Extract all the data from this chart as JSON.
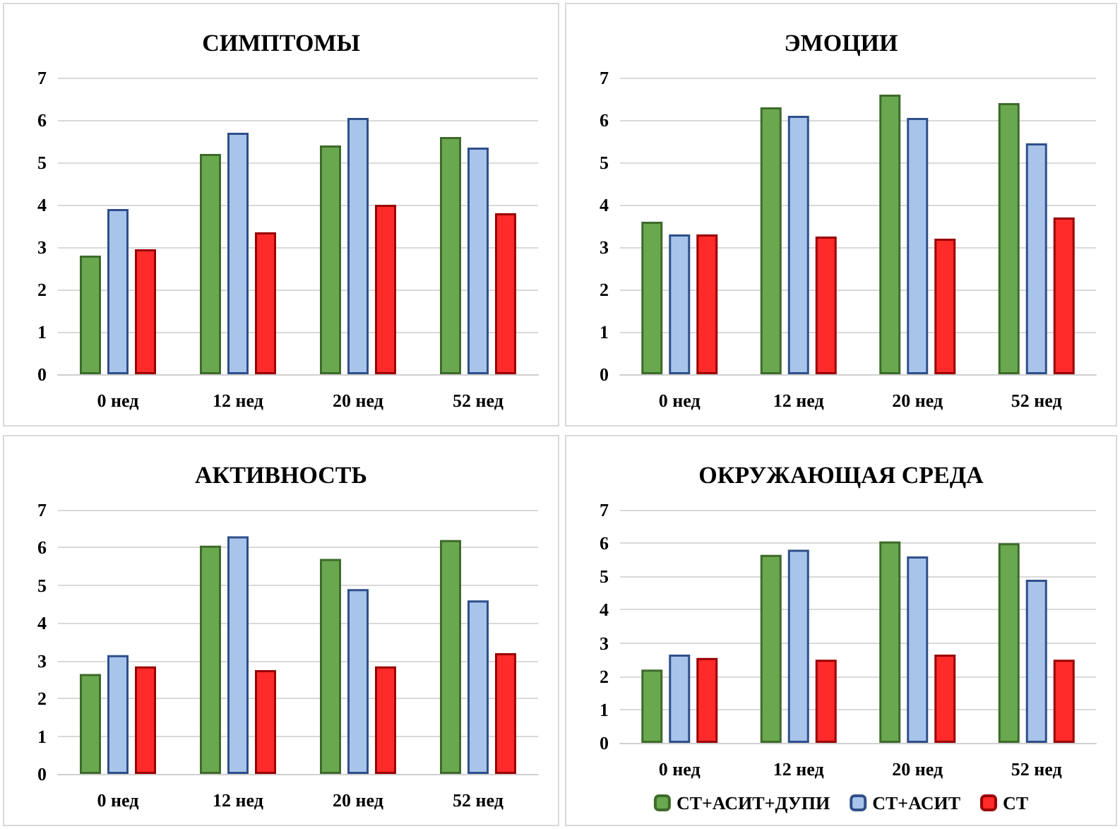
{
  "chart_data": [
    {
      "type": "bar",
      "title": "СИМПТОМЫ",
      "categories": [
        "0 нед",
        "12 нед",
        "20 нед",
        "52 нед"
      ],
      "ylim": [
        0,
        7
      ],
      "yticks": [
        0,
        1,
        2,
        3,
        4,
        5,
        6,
        7
      ],
      "grid": "y",
      "legend": false,
      "series": [
        {
          "color": "#6aa84f",
          "values": [
            2.8,
            5.2,
            5.4,
            5.6
          ]
        },
        {
          "color": "#a9c4eb",
          "values": [
            3.9,
            5.7,
            6.05,
            5.35
          ]
        },
        {
          "color": "#ff2a2a",
          "values": [
            2.95,
            3.35,
            4.0,
            3.8
          ]
        }
      ]
    },
    {
      "type": "bar",
      "title": "ЭМОЦИИ",
      "categories": [
        "0 нед",
        "12 нед",
        "20 нед",
        "52 нед"
      ],
      "ylim": [
        0,
        7
      ],
      "yticks": [
        0,
        1,
        2,
        3,
        4,
        5,
        6,
        7
      ],
      "grid": "y",
      "legend": false,
      "series": [
        {
          "color": "#6aa84f",
          "values": [
            3.6,
            6.3,
            6.6,
            6.4
          ]
        },
        {
          "color": "#a9c4eb",
          "values": [
            3.3,
            6.1,
            6.05,
            5.45
          ]
        },
        {
          "color": "#ff2a2a",
          "values": [
            3.3,
            3.25,
            3.2,
            3.7
          ]
        }
      ]
    },
    {
      "type": "bar",
      "title": "АКТИВНОСТЬ",
      "categories": [
        "0 нед",
        "12 нед",
        "20 нед",
        "52 нед"
      ],
      "ylim": [
        0,
        7
      ],
      "yticks": [
        0,
        1,
        2,
        3,
        4,
        5,
        6,
        7
      ],
      "grid": "y",
      "legend": false,
      "series": [
        {
          "color": "#6aa84f",
          "values": [
            2.65,
            6.05,
            5.7,
            6.2
          ]
        },
        {
          "color": "#a9c4eb",
          "values": [
            3.15,
            6.3,
            4.9,
            4.6
          ]
        },
        {
          "color": "#ff2a2a",
          "values": [
            2.85,
            2.75,
            2.85,
            3.2
          ]
        }
      ]
    },
    {
      "type": "bar",
      "title": "ОКРУЖАЮЩАЯ СРЕДА",
      "categories": [
        "0 нед",
        "12 нед",
        "20 нед",
        "52 нед"
      ],
      "ylim": [
        0,
        7
      ],
      "yticks": [
        0,
        1,
        2,
        3,
        4,
        5,
        6,
        7
      ],
      "grid": "y",
      "legend": "bottom",
      "series": [
        {
          "name": "СТ+АСИТ+ДУПИ",
          "color": "#6aa84f",
          "values": [
            2.2,
            5.65,
            6.05,
            6.0
          ]
        },
        {
          "name": "СТ+АСИТ",
          "color": "#a9c4eb",
          "values": [
            2.65,
            5.8,
            5.6,
            4.9
          ]
        },
        {
          "name": "СТ",
          "color": "#ff2a2a",
          "values": [
            2.55,
            2.5,
            2.65,
            2.5
          ]
        }
      ]
    }
  ]
}
